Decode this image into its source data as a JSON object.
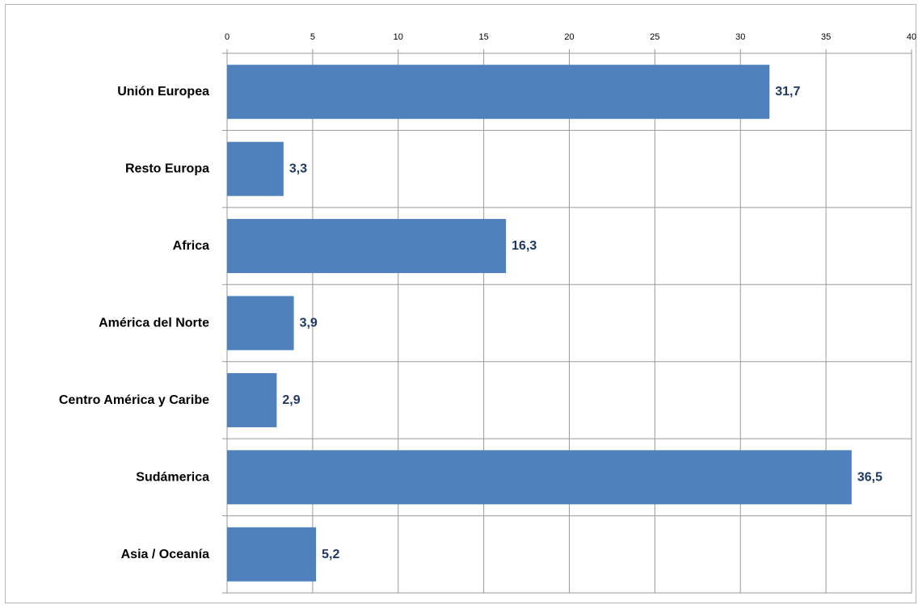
{
  "chart_data": {
    "type": "bar",
    "orientation": "horizontal",
    "categories": [
      "Unión Europea",
      "Resto Europa",
      "Africa",
      "América del Norte",
      "Centro América y Caribe",
      "Sudámerica",
      "Asia  / Oceanía"
    ],
    "values": [
      31.7,
      3.3,
      16.3,
      3.9,
      2.9,
      36.5,
      5.2
    ],
    "value_labels": [
      "31,7",
      "3,3",
      "16,3",
      "3,9",
      "2,9",
      "36,5",
      "5,2"
    ],
    "xlim": [
      0,
      40
    ],
    "x_ticks": [
      0,
      5,
      10,
      15,
      20,
      25,
      30,
      35,
      40
    ],
    "x_tick_labels": [
      "0",
      "5",
      "10",
      "15",
      "20",
      "25",
      "30",
      "35",
      "40"
    ],
    "x_axis_position": "top",
    "grid": true,
    "legend": "none",
    "title": "",
    "xlabel": "",
    "ylabel": "",
    "colors": {
      "bar": "#4f81bd",
      "value_label": "#1f3864",
      "grid": "#9a9a9a",
      "frame": "#b7b7b7"
    }
  }
}
